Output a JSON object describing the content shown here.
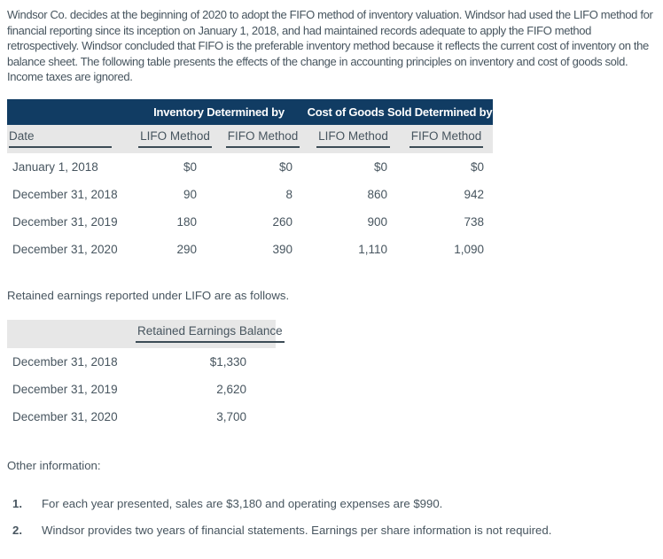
{
  "intro": "Windsor Co. decides at the beginning of 2020 to adopt the FIFO method of inventory valuation. Windsor had used the LIFO method for financial reporting since its inception on January 1, 2018, and had maintained records adequate to apply the FIFO method retrospectively. Windsor concluded that FIFO is the preferable inventory method because it reflects the current cost of inventory on the balance sheet. The following table presents the effects of the change in accounting principles on inventory and cost of goods sold. Income taxes are ignored.",
  "table1": {
    "group_headers": [
      "Inventory Determined by",
      "Cost of Goods Sold Determined by"
    ],
    "col_headers": [
      "Date",
      "LIFO Method",
      "FIFO Method",
      "LIFO Method",
      "FIFO Method"
    ],
    "rows": [
      {
        "date": "January 1, 2018",
        "values": [
          "$0",
          "$0",
          "$0",
          "$0"
        ]
      },
      {
        "date": "December 31, 2018",
        "values": [
          "90",
          "8",
          "860",
          "942"
        ]
      },
      {
        "date": "December 31, 2019",
        "values": [
          "180",
          "260",
          "900",
          "738"
        ]
      },
      {
        "date": "December 31, 2020",
        "values": [
          "290",
          "390",
          "1,110",
          "1,090"
        ]
      }
    ]
  },
  "retained_note": "Retained earnings reported under LIFO are as follows.",
  "table2": {
    "header": "Retained Earnings Balance",
    "rows": [
      {
        "date": "December 31, 2018",
        "value": "$1,330"
      },
      {
        "date": "December 31, 2019",
        "value": "2,620"
      },
      {
        "date": "December 31, 2020",
        "value": "3,700"
      }
    ]
  },
  "other_info": {
    "title": "Other information:",
    "items": [
      {
        "number": "1.",
        "text": "For each year presented, sales are $3,180 and operating expenses are $990."
      },
      {
        "number": "2.",
        "text": "Windsor provides two years of financial statements. Earnings per share information is not required."
      }
    ]
  },
  "colors": {
    "header_bg": "#113c63",
    "subheader_bg": "#e7e7e7",
    "text": "#47555f",
    "rule": "#3c4c56",
    "header_text": "#ffffff"
  }
}
